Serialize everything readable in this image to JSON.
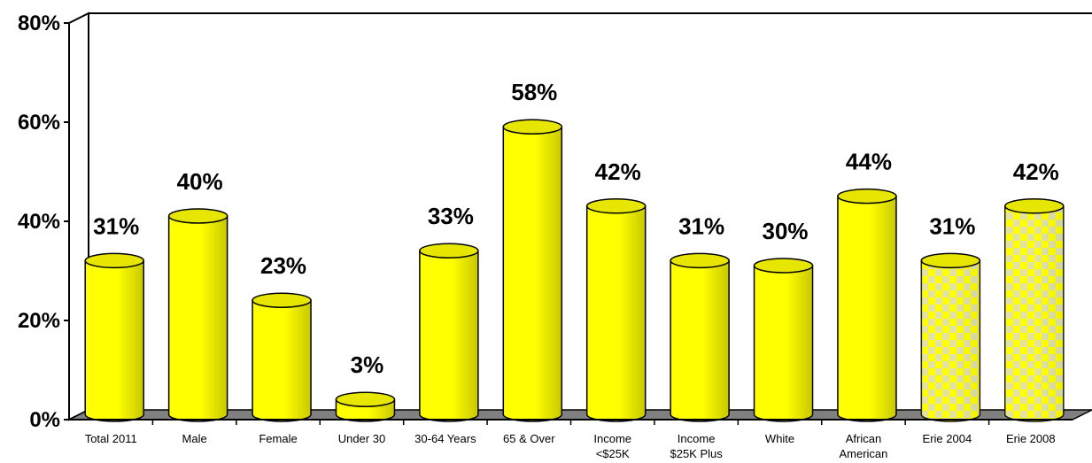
{
  "chart_data": {
    "type": "bar",
    "bar_style": "3d-cylinder",
    "categories": [
      "Total 2011",
      "Male",
      "Female",
      "Under 30",
      "30-64 Years",
      "65 & Over",
      "Income <$25K",
      "Income $25K Plus",
      "White",
      "African American",
      "Erie 2004",
      "Erie 2008"
    ],
    "category_lines": [
      [
        "Total 2011"
      ],
      [
        "Male"
      ],
      [
        "Female"
      ],
      [
        "Under 30"
      ],
      [
        "30-64 Years"
      ],
      [
        "65 & Over"
      ],
      [
        "Income",
        "<$25K"
      ],
      [
        "Income",
        "$25K Plus"
      ],
      [
        "White"
      ],
      [
        "African",
        "American"
      ],
      [
        "Erie 2004"
      ],
      [
        "Erie 2008"
      ]
    ],
    "values": [
      31,
      40,
      23,
      3,
      33,
      58,
      42,
      31,
      30,
      44,
      31,
      42
    ],
    "data_labels": [
      "31%",
      "40%",
      "23%",
      "3%",
      "33%",
      "58%",
      "42%",
      "31%",
      "30%",
      "44%",
      "31%",
      "42%"
    ],
    "fill_patterns": [
      "solid",
      "solid",
      "solid",
      "solid",
      "solid",
      "solid",
      "solid",
      "solid",
      "solid",
      "solid",
      "checker",
      "checker"
    ],
    "ylim": [
      0,
      80
    ],
    "yticks": [
      0,
      20,
      40,
      60,
      80
    ],
    "ytick_labels": [
      "0%",
      "20%",
      "40%",
      "60%",
      "80%"
    ],
    "title": "",
    "xlabel": "",
    "ylabel": "",
    "grid": false,
    "colors": {
      "bar_fill": "#ffff00",
      "bar_shade": "#c8c800",
      "bar_top": "#e6e600",
      "floor": "#808080",
      "checker_alt": "#d8d8d8",
      "outline": "#000000"
    }
  }
}
